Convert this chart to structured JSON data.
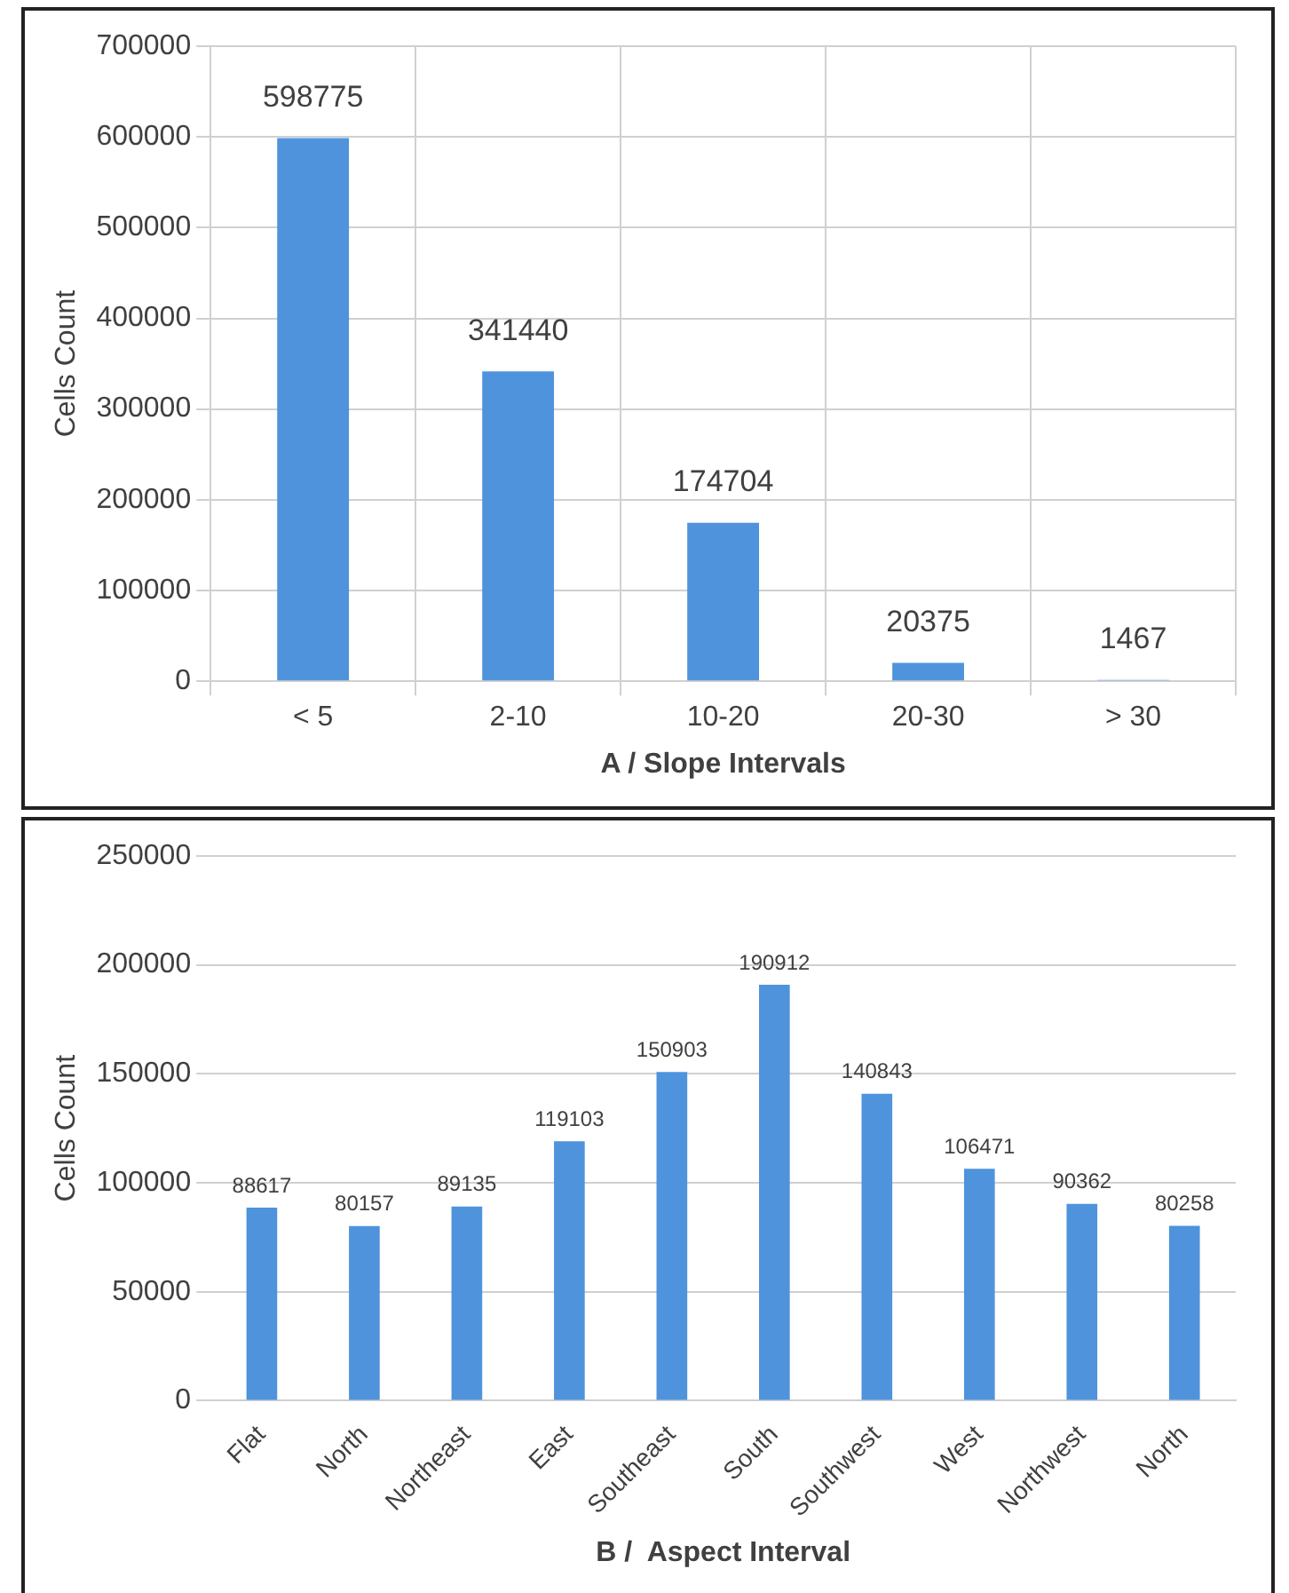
{
  "chart_data": [
    {
      "type": "bar",
      "xlabel": "A / Slope Intervals",
      "ylabel": "Cells Count",
      "categories": [
        "< 5",
        "2-10",
        "10-20",
        "20-30",
        "> 30"
      ],
      "values": [
        598775,
        341440,
        174704,
        20375,
        1467
      ],
      "color": "#4f93dc",
      "ylim": [
        0,
        700000
      ],
      "yticks": [
        0,
        100000,
        200000,
        300000,
        400000,
        500000,
        600000,
        700000
      ],
      "grid": true,
      "data_labels": true
    },
    {
      "type": "bar",
      "xlabel": "B /  Aspect Interval",
      "ylabel": "Cells Count",
      "categories": [
        "Flat",
        "North",
        "Northeast",
        "East",
        "Southeast",
        "South",
        "Southwest",
        "West",
        "Northwest",
        "North"
      ],
      "values": [
        88617,
        80157,
        89135,
        119103,
        150903,
        190912,
        140843,
        106471,
        90362,
        80258
      ],
      "color": "#4f93dc",
      "ylim": [
        0,
        250000
      ],
      "yticks": [
        0,
        50000,
        100000,
        150000,
        200000,
        250000
      ],
      "grid": "y",
      "data_labels": true
    }
  ]
}
